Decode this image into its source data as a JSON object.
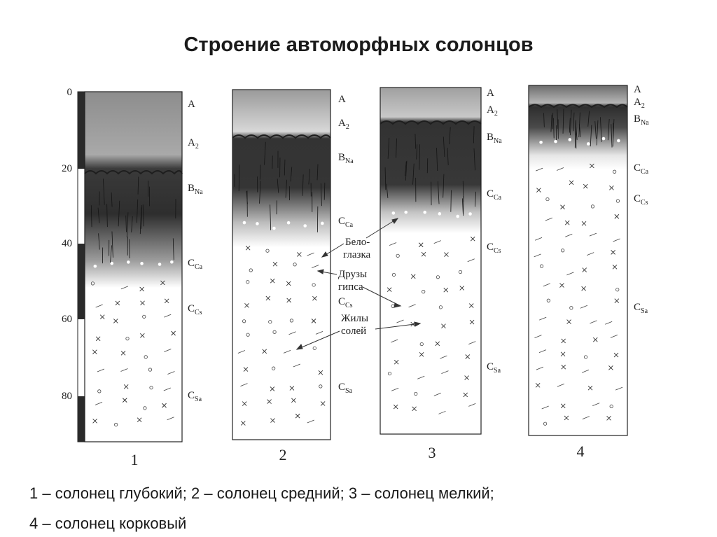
{
  "title": "Строение автоморфных солонцов",
  "depth_scale": {
    "ticks": [
      "0",
      "20",
      "40",
      "60",
      "80"
    ]
  },
  "profiles": [
    {
      "number": "1",
      "horizons": [
        {
          "main": "A",
          "sub": ""
        },
        {
          "main": "A",
          "sub": "2"
        },
        {
          "main": "B",
          "sub": "Na"
        },
        {
          "main": "C",
          "sub": "Ca"
        },
        {
          "main": "C",
          "sub": "Cs"
        },
        {
          "main": "C",
          "sub": "Sa"
        }
      ]
    },
    {
      "number": "2",
      "horizons": [
        {
          "main": "A",
          "sub": ""
        },
        {
          "main": "A",
          "sub": "2"
        },
        {
          "main": "B",
          "sub": "Na"
        },
        {
          "main": "C",
          "sub": "Ca"
        },
        {
          "main": "C",
          "sub": "Cs"
        },
        {
          "main": "C",
          "sub": "Sa"
        }
      ]
    },
    {
      "number": "3",
      "horizons": [
        {
          "main": "A",
          "sub": ""
        },
        {
          "main": "A",
          "sub": "2"
        },
        {
          "main": "B",
          "sub": "Na"
        },
        {
          "main": "C",
          "sub": "Ca"
        },
        {
          "main": "C",
          "sub": "Cs"
        },
        {
          "main": "C",
          "sub": "Sa"
        }
      ]
    },
    {
      "number": "4",
      "horizons": [
        {
          "main": "A",
          "sub": ""
        },
        {
          "main": "A",
          "sub": "2"
        },
        {
          "main": "B",
          "sub": "Na"
        },
        {
          "main": "C",
          "sub": "Ca"
        },
        {
          "main": "C",
          "sub": "Cs"
        },
        {
          "main": "C",
          "sub": "Sa"
        }
      ]
    }
  ],
  "annotations": {
    "beloglazka_1": "Бело-",
    "beloglazka_2": "глазка",
    "druzy_1": "Друзы",
    "druzy_2": "гипса",
    "zhily_1": "Жилы",
    "zhily_2": "солей"
  },
  "caption": {
    "line1": "1 – солонец глубокий; 2 – солонец средний; 3 – солонец мелкий;",
    "line2": "4 – солонец корковый"
  }
}
